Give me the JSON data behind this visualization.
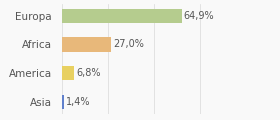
{
  "categories": [
    "Europa",
    "Africa",
    "America",
    "Asia"
  ],
  "values": [
    64.9,
    27.0,
    6.8,
    1.4
  ],
  "labels": [
    "64,9%",
    "27,0%",
    "6,8%",
    "1,4%"
  ],
  "bar_colors": [
    "#b5cc8e",
    "#e8b87a",
    "#e8d060",
    "#6080cc"
  ],
  "background_color": "#f9f9f9",
  "xlim": [
    0,
    100
  ],
  "bar_height": 0.5,
  "figsize": [
    2.8,
    1.2
  ],
  "dpi": 100,
  "label_fontsize": 7,
  "ytick_fontsize": 7.5,
  "grid_color": "#d8d8d8",
  "text_color": "#555555"
}
